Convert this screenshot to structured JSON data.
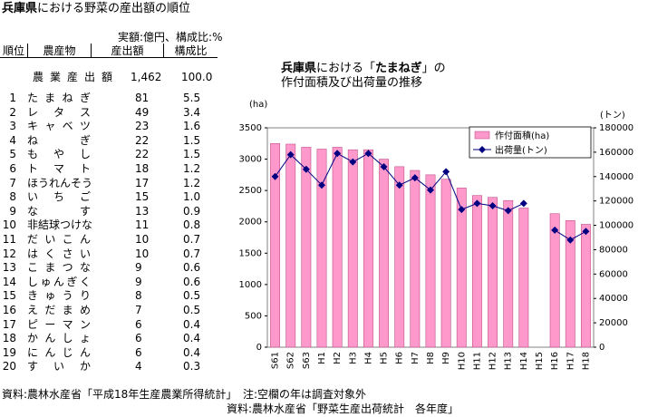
{
  "header": {
    "title": [
      "兵庫県",
      "における野菜の産出額の順位"
    ],
    "unit_note": "実額:億円、構成比:%"
  },
  "table": {
    "columns": [
      "順位",
      "農産物",
      "産出額",
      "構成比"
    ],
    "total": [
      "農業産出額",
      "1,462",
      "100.0"
    ],
    "rows": [
      [
        "1",
        "たまねぎ",
        "81",
        "5.5"
      ],
      [
        "2",
        "レタス",
        "49",
        "3.4"
      ],
      [
        "3",
        "キャベツ",
        "23",
        "1.6"
      ],
      [
        "4",
        "ねぎ",
        "22",
        "1.5"
      ],
      [
        "5",
        "もやし",
        "22",
        "1.5"
      ],
      [
        "6",
        "トマト",
        "18",
        "1.2"
      ],
      [
        "7",
        "ほうれんそう",
        "17",
        "1.2"
      ],
      [
        "8",
        "いちご",
        "15",
        "1.0"
      ],
      [
        "9",
        "なす",
        "13",
        "0.9"
      ],
      [
        "10",
        "非結球つけな",
        "11",
        "0.8"
      ],
      [
        "11",
        "だいこん",
        "10",
        "0.7"
      ],
      [
        "12",
        "はくさい",
        "10",
        "0.7"
      ],
      [
        "13",
        "こまつな",
        "9",
        "0.6"
      ],
      [
        "14",
        "しゅんぎく",
        "9",
        "0.6"
      ],
      [
        "15",
        "きゅうり",
        "8",
        "0.5"
      ],
      [
        "16",
        "えだまめ",
        "7",
        "0.5"
      ],
      [
        "17",
        "ピーマン",
        "6",
        "0.4"
      ],
      [
        "18",
        "かんしょ",
        "6",
        "0.4"
      ],
      [
        "19",
        "にんじん",
        "6",
        "0.4"
      ],
      [
        "20",
        "すいか",
        "4",
        "0.3"
      ]
    ]
  },
  "notes": {
    "table_source": "資料:農林水産省「平成18年生産農業所得統計」",
    "chart_note": "注:空欄の年は調査対象外",
    "chart_source": "資料:農林水産省「野菜生産出荷統計　各年度」"
  },
  "chart_data": {
    "type": "bar",
    "title": [
      "兵庫県",
      "における「",
      "たまねぎ",
      "」の作付面積及び出荷量の推移"
    ],
    "ylabel": "(ha)",
    "y2label": "(トン)",
    "categories": [
      "S61",
      "S62",
      "S63",
      "H1",
      "H2",
      "H3",
      "H4",
      "H5",
      "H6",
      "H7",
      "H8",
      "H9",
      "H10",
      "H11",
      "H12",
      "H13",
      "H14",
      "H15",
      "H16",
      "H17",
      "H18"
    ],
    "series": [
      {
        "name": "作付面積(ha)",
        "type": "bar",
        "color": "#ff99cc",
        "values": [
          3250,
          3240,
          3190,
          3160,
          3190,
          3150,
          3150,
          3000,
          2880,
          2820,
          2750,
          2680,
          2540,
          2420,
          2390,
          2340,
          2220,
          null,
          2130,
          2020,
          1960
        ]
      },
      {
        "name": "出荷量(トン)",
        "type": "line",
        "axis": "y2",
        "color": "#000080",
        "values": [
          140000,
          158000,
          146000,
          133000,
          159000,
          152000,
          159000,
          148000,
          133000,
          139000,
          129000,
          144000,
          113000,
          118000,
          116000,
          112000,
          118000,
          null,
          96000,
          88000,
          95000
        ]
      }
    ],
    "ylim": [
      0,
      3500
    ],
    "yticks": [
      0,
      500,
      1000,
      1500,
      2000,
      2500,
      3000,
      3500
    ],
    "y2lim": [
      0,
      180000
    ],
    "y2ticks": [
      0,
      20000,
      40000,
      60000,
      80000,
      100000,
      120000,
      140000,
      160000,
      180000
    ],
    "legend": "upper right"
  }
}
